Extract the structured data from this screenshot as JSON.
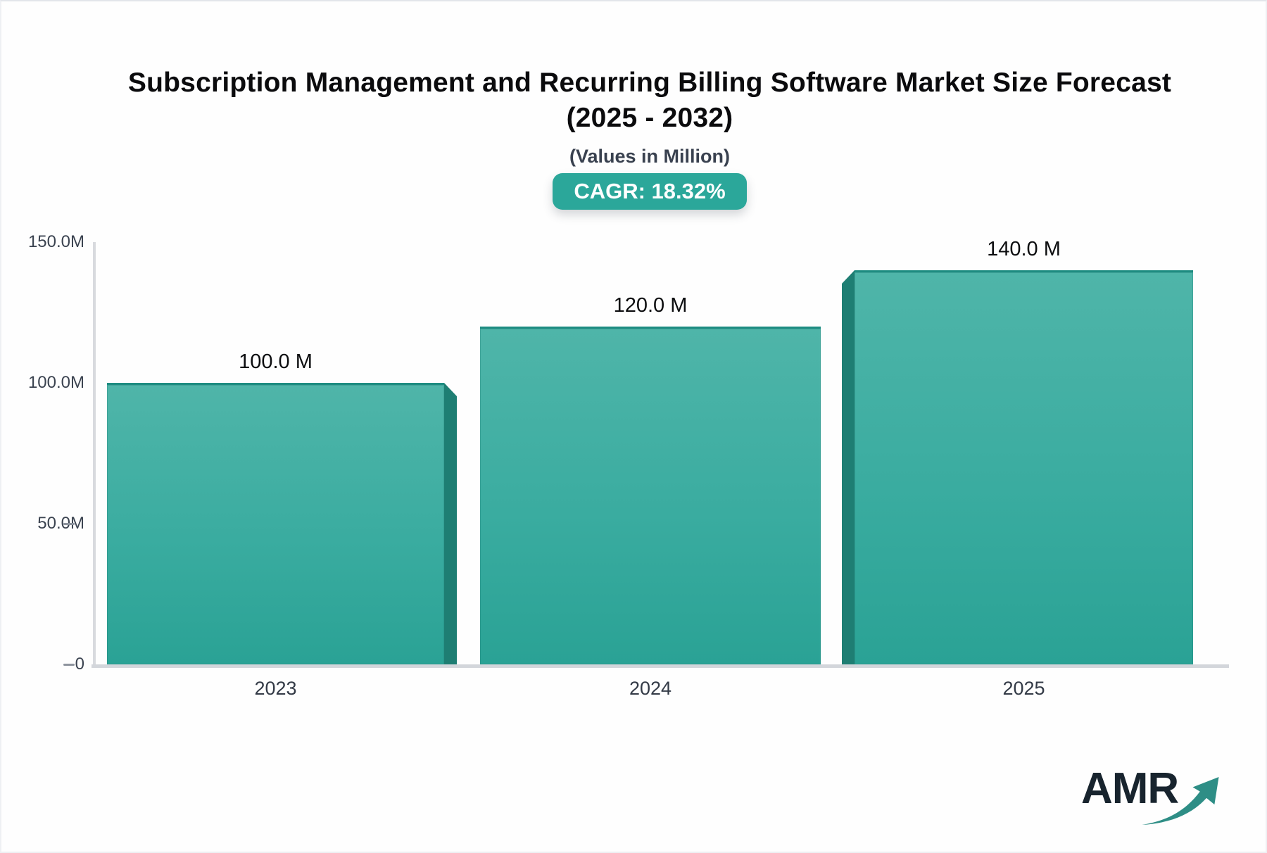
{
  "header": {
    "title_line1": "Subscription Management and Recurring Billing Software Market Size Forecast",
    "title_line2": "(2025 - 2032)",
    "subtitle": "(Values in Million)",
    "cagr_label": "CAGR: 18.32%"
  },
  "chart_data": {
    "type": "bar",
    "title": "Subscription Management and Recurring Billing Software Market Size Forecast (2025 - 2032)",
    "subtitle": "(Values in Million)",
    "cagr_pct": 18.32,
    "unit": "Million",
    "categories": [
      "2023",
      "2024",
      "2025"
    ],
    "values": [
      100.0,
      120.0,
      140.0
    ],
    "bar_labels": [
      "100.0 M",
      "120.0 M",
      "140.0 M"
    ],
    "y_ticks": [
      {
        "label": "150.0M",
        "value": 150,
        "dash": false
      },
      {
        "label": "100.0M",
        "value": 100,
        "dash": false
      },
      {
        "label": "50.0M",
        "value": 50,
        "dash": true
      },
      {
        "label": "0",
        "value": 0,
        "dash": true
      }
    ],
    "ylim": [
      0,
      150
    ],
    "grid": false,
    "legend": "none",
    "bar_color_top": "#4FB5A9",
    "bar_color_bottom": "#2AA295",
    "bar_side_color": "#1E7E73",
    "accent_color": "#2BA79A"
  },
  "logo": {
    "text": "AMR",
    "arrow_icon": "trend-up-arrow",
    "arrow_color": "#2E8E86"
  }
}
